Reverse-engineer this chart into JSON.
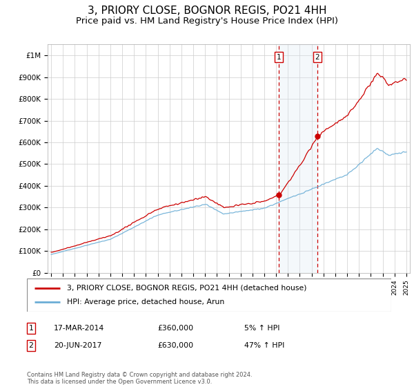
{
  "title": "3, PRIORY CLOSE, BOGNOR REGIS, PO21 4HH",
  "subtitle": "Price paid vs. HM Land Registry's House Price Index (HPI)",
  "ylim": [
    0,
    1050000
  ],
  "yticks": [
    0,
    100000,
    200000,
    300000,
    400000,
    500000,
    600000,
    700000,
    800000,
    900000,
    1000000
  ],
  "ytick_labels": [
    "£0",
    "£100K",
    "£200K",
    "£300K",
    "£400K",
    "£500K",
    "£600K",
    "£700K",
    "£800K",
    "£900K",
    "£1M"
  ],
  "hpi_color": "#6baed6",
  "price_color": "#cc0000",
  "transaction1_date": 2014.21,
  "transaction1_price": 360000,
  "transaction1_label": "1",
  "transaction2_date": 2017.47,
  "transaction2_price": 630000,
  "transaction2_label": "2",
  "legend_label1": "3, PRIORY CLOSE, BOGNOR REGIS, PO21 4HH (detached house)",
  "legend_label2": "HPI: Average price, detached house, Arun",
  "table_row1": [
    "1",
    "17-MAR-2014",
    "£360,000",
    "5% ↑ HPI"
  ],
  "table_row2": [
    "2",
    "20-JUN-2017",
    "£630,000",
    "47% ↑ HPI"
  ],
  "footnote": "Contains HM Land Registry data © Crown copyright and database right 2024.\nThis data is licensed under the Open Government Licence v3.0.",
  "background_color": "#ffffff",
  "grid_color": "#cccccc",
  "shade_color": "#dce8f5",
  "vline_color": "#cc0000",
  "title_fontsize": 11,
  "subtitle_fontsize": 9.5,
  "tick_fontsize": 7.5
}
